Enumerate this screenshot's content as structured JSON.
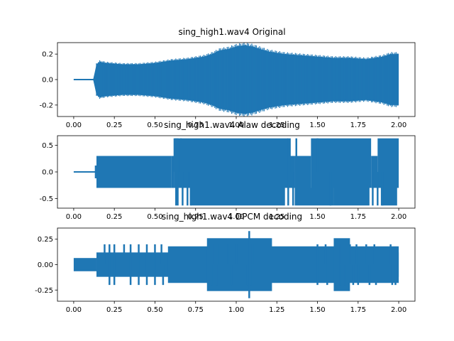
{
  "figure": {
    "background": "#ffffff",
    "line_color": "#1f77b4"
  },
  "chart_data": [
    {
      "type": "line",
      "title": "sing_high1.wav4 Original",
      "xlabel": "",
      "ylabel": "",
      "xlim": [
        -0.1,
        2.1
      ],
      "ylim": [
        -0.29,
        0.29
      ],
      "xticks": [
        "0.00",
        "0.25",
        "0.50",
        "0.75",
        "1.00",
        "1.25",
        "1.50",
        "1.75",
        "2.00"
      ],
      "yticks": [
        "-0.2",
        "0.0",
        "0.2"
      ],
      "ytick_values": [
        -0.2,
        0.0,
        0.2
      ],
      "series": [
        {
          "style": "waveform",
          "x": [
            0.0,
            0.12,
            0.13,
            0.14,
            0.16,
            0.2,
            0.3,
            0.4,
            0.5,
            0.6,
            0.7,
            0.8,
            0.85,
            0.9,
            0.95,
            1.0,
            1.05,
            1.1,
            1.15,
            1.2,
            1.3,
            1.4,
            1.5,
            1.6,
            1.7,
            1.8,
            1.9,
            1.95,
            2.0
          ],
          "envelope": [
            0.004,
            0.004,
            0.06,
            0.12,
            0.14,
            0.13,
            0.12,
            0.12,
            0.13,
            0.15,
            0.16,
            0.18,
            0.2,
            0.23,
            0.24,
            0.26,
            0.27,
            0.26,
            0.24,
            0.22,
            0.2,
            0.19,
            0.18,
            0.17,
            0.17,
            0.16,
            0.18,
            0.2,
            0.2
          ]
        }
      ]
    },
    {
      "type": "line",
      "title": "sing_high1.wav4 Alaw decoding",
      "xlabel": "",
      "ylabel": "",
      "xlim": [
        -0.1,
        2.1
      ],
      "ylim": [
        -0.68,
        0.68
      ],
      "xticks": [
        "0.00",
        "0.25",
        "0.50",
        "0.75",
        "1.00",
        "1.25",
        "1.50",
        "1.75",
        "2.00"
      ],
      "yticks": [
        "-0.5",
        "0.0",
        "0.5"
      ],
      "ytick_values": [
        -0.5,
        0.0,
        0.5
      ],
      "series": [
        {
          "style": "waveform",
          "base_level": 0.003,
          "blocks": [
            {
              "x0": 0.13,
              "x1": 0.14,
              "top": 0.12,
              "bottom": -0.12
            },
            {
              "x0": 0.14,
              "x1": 0.6,
              "top": 0.3,
              "bottom": -0.3
            },
            {
              "x0": 0.6,
              "x1": 0.62,
              "top": 0.3,
              "bottom": -0.3
            },
            {
              "x0": 0.62,
              "x1": 1.32,
              "top": 0.63,
              "bottom": -0.3
            },
            {
              "x0": 1.32,
              "x1": 1.36,
              "top": 0.3,
              "bottom": -0.3
            },
            {
              "x0": 1.36,
              "x1": 1.46,
              "top": 0.3,
              "bottom": -0.3
            },
            {
              "x0": 1.46,
              "x1": 1.83,
              "top": 0.63,
              "bottom": -0.3
            },
            {
              "x0": 1.83,
              "x1": 1.87,
              "top": 0.3,
              "bottom": -0.3
            },
            {
              "x0": 1.87,
              "x1": 2.0,
              "top": 0.63,
              "bottom": -0.3
            }
          ],
          "spikes_up": [
            0.62,
            0.63,
            0.64,
            0.66,
            1.32,
            1.33,
            1.37,
            1.5
          ],
          "spikes_down": [
            0.63,
            0.64,
            0.67,
            0.7,
            0.72,
            1.32,
            1.35,
            1.58,
            1.84,
            1.87,
            1.9
          ],
          "low_blocks": [
            {
              "x0": 0.72,
              "x1": 1.3,
              "bottom": -0.63
            },
            {
              "x0": 1.36,
              "x1": 1.6,
              "bottom": -0.63
            },
            {
              "x0": 1.6,
              "x1": 1.82,
              "bottom": -0.63
            },
            {
              "x0": 1.89,
              "x1": 1.99,
              "bottom": -0.63
            }
          ]
        }
      ]
    },
    {
      "type": "line",
      "title": "sing_high1.wav4 DPCM decoding",
      "xlabel": "",
      "ylabel": "",
      "xlim": [
        -0.1,
        2.1
      ],
      "ylim": [
        -0.36,
        0.36
      ],
      "xticks": [
        "0.00",
        "0.25",
        "0.50",
        "0.75",
        "1.00",
        "1.25",
        "1.50",
        "1.75",
        "2.00"
      ],
      "yticks": [
        "-0.25",
        "0.00",
        "0.25"
      ],
      "ytick_values": [
        -0.25,
        0.0,
        0.25
      ],
      "series": [
        {
          "style": "waveform",
          "blocks": [
            {
              "x0": 0.0,
              "x1": 0.14,
              "top": 0.065,
              "bottom": -0.065
            },
            {
              "x0": 0.14,
              "x1": 2.0,
              "top": 0.12,
              "bottom": -0.12
            },
            {
              "x0": 0.58,
              "x1": 2.0,
              "top": 0.18,
              "bottom": -0.18
            },
            {
              "x0": 0.82,
              "x1": 1.22,
              "top": 0.26,
              "bottom": -0.26
            },
            {
              "x0": 1.6,
              "x1": 1.7,
              "top": 0.26,
              "bottom": -0.26
            }
          ],
          "spikes_up": [
            0.19,
            0.22,
            0.25,
            0.31,
            0.35,
            0.4,
            0.45,
            0.5,
            0.54,
            0.87,
            0.9,
            0.95,
            1.0,
            1.08,
            1.1,
            1.5,
            1.55,
            1.63,
            1.65,
            1.7,
            1.74,
            1.8,
            1.85,
            1.95
          ],
          "spikes_down": [
            0.22,
            0.25,
            0.35,
            0.4,
            0.45,
            0.5,
            0.55,
            0.85,
            0.88,
            0.97,
            1.07,
            1.09,
            1.5,
            1.56,
            1.64,
            1.67,
            1.72,
            1.75,
            1.82,
            1.86,
            1.96,
            1.98
          ],
          "peak_top": 0.33,
          "peak_bottom": -0.33,
          "peak_x": 1.08
        }
      ]
    }
  ]
}
